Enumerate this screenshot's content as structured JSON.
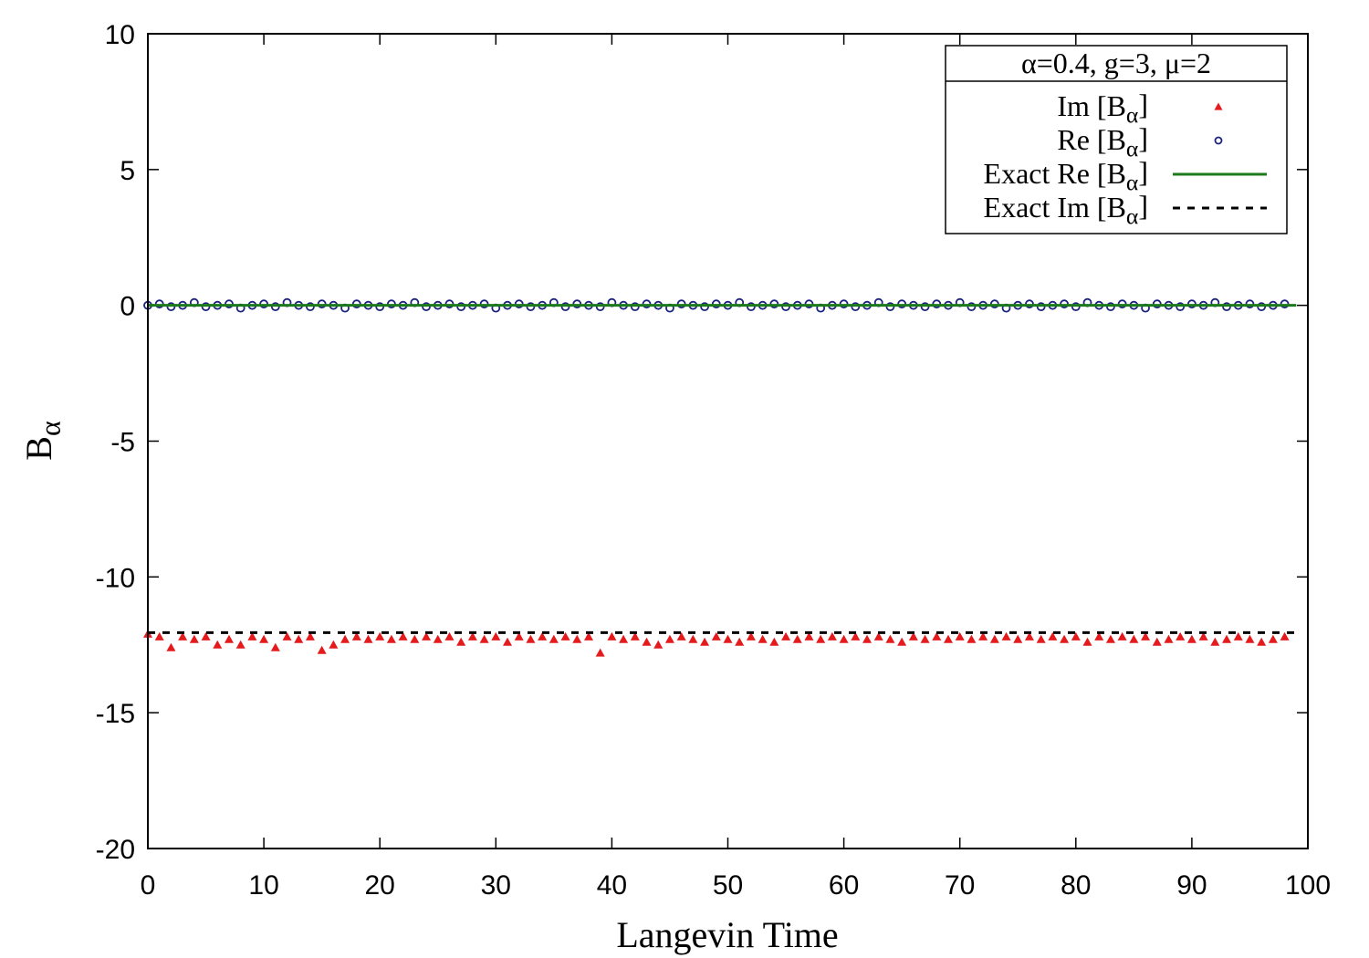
{
  "chart_data": {
    "type": "scatter",
    "xlabel": "Langevin Time",
    "ylabel": "Bα",
    "legend_title": "α=0.4, g=3, μ=2",
    "legend": "upper right",
    "xlim": [
      0,
      100
    ],
    "xticks": [
      0,
      10,
      20,
      30,
      40,
      50,
      60,
      70,
      80,
      90,
      100
    ],
    "ylim": [
      -20,
      10
    ],
    "yticks": [
      -20,
      -15,
      -10,
      -5,
      0,
      5,
      10
    ],
    "grid": false,
    "series": [
      {
        "name": "Im [Bα]",
        "color": "#e41a1c",
        "marker": "triangle",
        "x": [
          0,
          1,
          2,
          3,
          4,
          5,
          6,
          7,
          8,
          9,
          10,
          11,
          12,
          13,
          14,
          15,
          16,
          17,
          18,
          19,
          20,
          21,
          22,
          23,
          24,
          25,
          26,
          27,
          28,
          29,
          30,
          31,
          32,
          33,
          34,
          35,
          36,
          37,
          38,
          39,
          40,
          41,
          42,
          43,
          44,
          45,
          46,
          47,
          48,
          49,
          50,
          51,
          52,
          53,
          54,
          55,
          56,
          57,
          58,
          59,
          60,
          61,
          62,
          63,
          64,
          65,
          66,
          67,
          68,
          69,
          70,
          71,
          72,
          73,
          74,
          75,
          76,
          77,
          78,
          79,
          80,
          81,
          82,
          83,
          84,
          85,
          86,
          87,
          88,
          89,
          90,
          91,
          92,
          93,
          94,
          95,
          96,
          97,
          98
        ],
        "values": [
          -12.1,
          -12.2,
          -12.6,
          -12.2,
          -12.3,
          -12.2,
          -12.5,
          -12.3,
          -12.5,
          -12.2,
          -12.3,
          -12.6,
          -12.2,
          -12.3,
          -12.2,
          -12.7,
          -12.5,
          -12.3,
          -12.2,
          -12.3,
          -12.2,
          -12.3,
          -12.2,
          -12.3,
          -12.2,
          -12.3,
          -12.2,
          -12.4,
          -12.2,
          -12.3,
          -12.2,
          -12.4,
          -12.2,
          -12.3,
          -12.2,
          -12.3,
          -12.2,
          -12.3,
          -12.2,
          -12.8,
          -12.2,
          -12.3,
          -12.2,
          -12.4,
          -12.5,
          -12.3,
          -12.2,
          -12.3,
          -12.4,
          -12.2,
          -12.3,
          -12.4,
          -12.2,
          -12.3,
          -12.4,
          -12.2,
          -12.3,
          -12.2,
          -12.3,
          -12.2,
          -12.3,
          -12.2,
          -12.3,
          -12.2,
          -12.3,
          -12.4,
          -12.2,
          -12.3,
          -12.2,
          -12.3,
          -12.2,
          -12.3,
          -12.2,
          -12.3,
          -12.2,
          -12.3,
          -12.2,
          -12.3,
          -12.2,
          -12.3,
          -12.2,
          -12.4,
          -12.2,
          -12.3,
          -12.2,
          -12.3,
          -12.2,
          -12.4,
          -12.3,
          -12.2,
          -12.3,
          -12.2,
          -12.4,
          -12.3,
          -12.2,
          -12.3,
          -12.4,
          -12.3,
          -12.2
        ]
      },
      {
        "name": "Re [Bα]",
        "color": "#1a237e",
        "marker": "circle",
        "x": [
          0,
          1,
          2,
          3,
          4,
          5,
          6,
          7,
          8,
          9,
          10,
          11,
          12,
          13,
          14,
          15,
          16,
          17,
          18,
          19,
          20,
          21,
          22,
          23,
          24,
          25,
          26,
          27,
          28,
          29,
          30,
          31,
          32,
          33,
          34,
          35,
          36,
          37,
          38,
          39,
          40,
          41,
          42,
          43,
          44,
          45,
          46,
          47,
          48,
          49,
          50,
          51,
          52,
          53,
          54,
          55,
          56,
          57,
          58,
          59,
          60,
          61,
          62,
          63,
          64,
          65,
          66,
          67,
          68,
          69,
          70,
          71,
          72,
          73,
          74,
          75,
          76,
          77,
          78,
          79,
          80,
          81,
          82,
          83,
          84,
          85,
          86,
          87,
          88,
          89,
          90,
          91,
          92,
          93,
          94,
          95,
          96,
          97,
          98
        ],
        "values": [
          0,
          0.05,
          -0.05,
          0,
          0.1,
          -0.05,
          0,
          0.05,
          -0.1,
          0,
          0.05,
          -0.05,
          0.1,
          0,
          -0.05,
          0.05,
          0,
          -0.1,
          0.05,
          0,
          -0.05,
          0.05,
          0,
          0.1,
          -0.05,
          0,
          0.05,
          -0.05,
          0,
          0.05,
          -0.1,
          0,
          0.05,
          -0.05,
          0,
          0.1,
          -0.05,
          0.05,
          0,
          -0.05,
          0.1,
          0,
          -0.05,
          0.05,
          0,
          -0.1,
          0.05,
          0,
          -0.05,
          0.05,
          0,
          0.1,
          -0.05,
          0,
          0.05,
          -0.05,
          0,
          0.05,
          -0.1,
          0,
          0.05,
          -0.05,
          0,
          0.1,
          -0.05,
          0.05,
          0,
          -0.05,
          0.05,
          0,
          0.1,
          -0.05,
          0,
          0.05,
          -0.1,
          0,
          0.05,
          -0.05,
          0,
          0.05,
          -0.05,
          0.1,
          0,
          -0.05,
          0.05,
          0,
          -0.1,
          0.05,
          0,
          -0.05,
          0.05,
          0,
          0.1,
          -0.05,
          0,
          0.05,
          -0.05,
          0,
          0.05
        ]
      },
      {
        "name": "Exact Re [Bα]",
        "color": "#1b7a1b",
        "line": "solid",
        "x": [
          0,
          99
        ],
        "values": [
          0,
          0
        ]
      },
      {
        "name": "Exact Im [Bα]",
        "color": "#000000",
        "line": "dashed",
        "x": [
          0,
          99
        ],
        "values": [
          -12.05,
          -12.05
        ]
      }
    ]
  }
}
